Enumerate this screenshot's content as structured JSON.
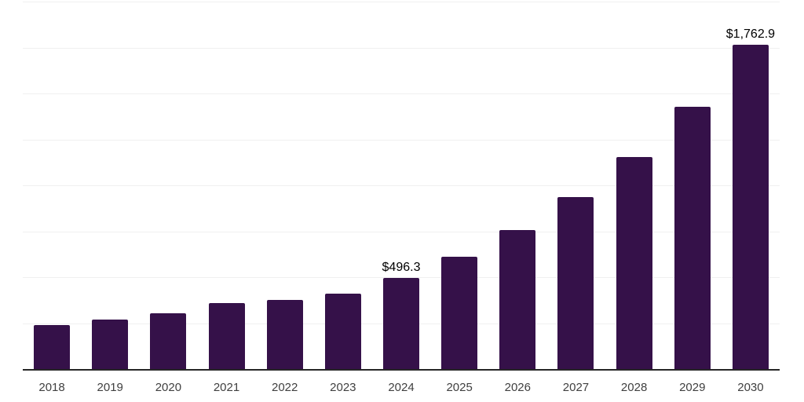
{
  "chart_data": {
    "type": "bar",
    "title": "",
    "xlabel": "",
    "ylabel": "",
    "categories": [
      "2018",
      "2019",
      "2020",
      "2021",
      "2022",
      "2023",
      "2024",
      "2025",
      "2026",
      "2027",
      "2028",
      "2029",
      "2030"
    ],
    "values": [
      240,
      270,
      303,
      360,
      377,
      410,
      496.3,
      613,
      757,
      935,
      1155,
      1427,
      1762.9
    ],
    "data_labels": [
      "",
      "",
      "",
      "",
      "",
      "",
      "$496.3",
      "",
      "",
      "",
      "",
      "",
      "$1,762.9"
    ],
    "ylim": [
      0,
      2000
    ],
    "gridline_step": 250,
    "grid": true,
    "legend": false
  },
  "colors": {
    "background": "#ffffff",
    "bar": "#351149",
    "axis": "#262626",
    "gridline": "#f0f0f0",
    "data_label": "#000000",
    "tick_label": "#404040"
  }
}
